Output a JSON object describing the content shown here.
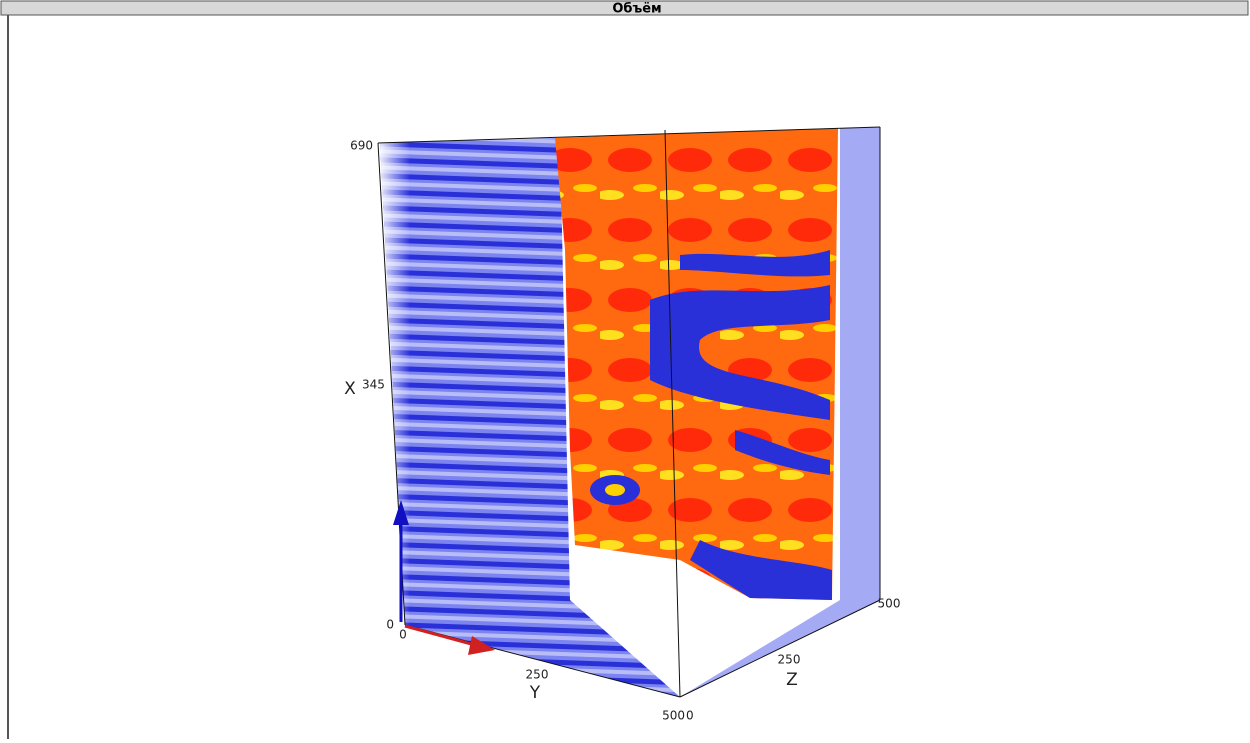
{
  "window": {
    "title": "Объём"
  },
  "axes": {
    "x": {
      "label": "X",
      "ticks": [
        0,
        345,
        690
      ]
    },
    "y": {
      "label": "Y",
      "ticks": [
        0,
        250,
        500
      ]
    },
    "z": {
      "label": "Z",
      "ticks": [
        0,
        250,
        500
      ]
    }
  }
}
